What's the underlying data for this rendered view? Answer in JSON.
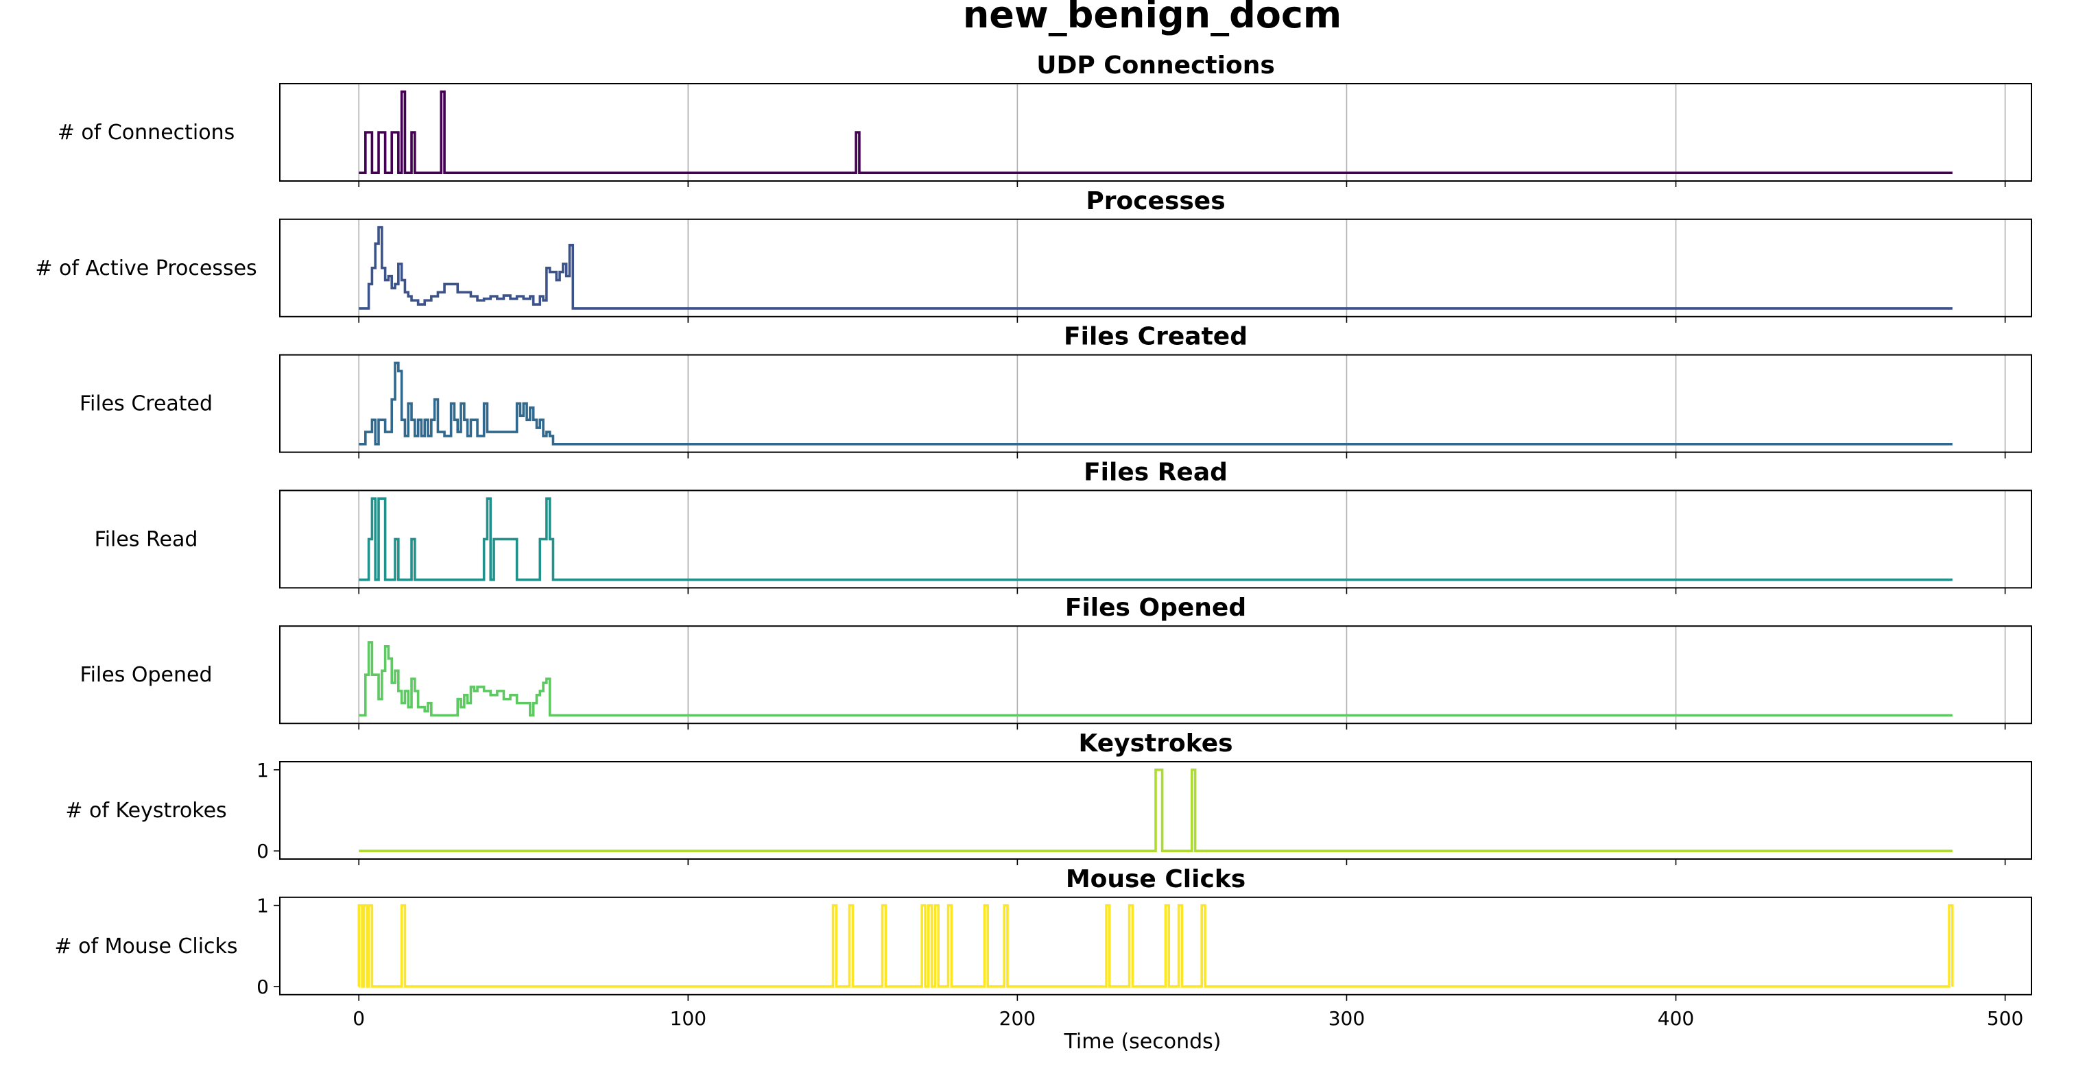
{
  "figure": {
    "suptitle": "new_benign_docm",
    "xlabel": "Time (seconds)"
  },
  "chart_data": [
    {
      "type": "line",
      "title": "UDP Connections",
      "ylabel": "# of Connections",
      "color": "#440154",
      "xlim": [
        -24,
        508
      ],
      "xticks": [
        0,
        100,
        200,
        300,
        400,
        500
      ],
      "ylim": [
        -0.1,
        1.1
      ],
      "yticks": [],
      "grid": true,
      "series": [
        {
          "x": [
            0,
            2,
            4,
            6,
            8,
            10,
            12,
            13,
            14,
            16,
            17,
            25,
            26,
            151,
            152,
            484
          ],
          "y": [
            0,
            0.5,
            0,
            0.5,
            0,
            0.5,
            0,
            1,
            0,
            0.5,
            0,
            1,
            0,
            0.5,
            0,
            0
          ]
        }
      ]
    },
    {
      "type": "line",
      "title": "Processes",
      "ylabel": "# of Active Processes",
      "color": "#3b528b",
      "xlim": [
        -24,
        508
      ],
      "xticks": [
        0,
        100,
        200,
        300,
        400,
        500
      ],
      "ylim": [
        -0.1,
        1.1
      ],
      "yticks": [],
      "grid": true,
      "series": [
        {
          "x": [
            0,
            3,
            4,
            5,
            6,
            7,
            8,
            9,
            10,
            11,
            12,
            13,
            14,
            15,
            16,
            18,
            20,
            22,
            24,
            26,
            28,
            30,
            32,
            34,
            36,
            38,
            40,
            42,
            44,
            46,
            48,
            50,
            52,
            53,
            55,
            56,
            57,
            58,
            60,
            61,
            62,
            63,
            64,
            65,
            66,
            484
          ],
          "y": [
            0,
            0.3,
            0.5,
            0.8,
            1.0,
            0.5,
            0.35,
            0.4,
            0.25,
            0.3,
            0.55,
            0.35,
            0.2,
            0.15,
            0.1,
            0.05,
            0.1,
            0.15,
            0.2,
            0.3,
            0.3,
            0.2,
            0.2,
            0.15,
            0.1,
            0.12,
            0.15,
            0.12,
            0.16,
            0.12,
            0.15,
            0.12,
            0.15,
            0.05,
            0.15,
            0.1,
            0.5,
            0.45,
            0.35,
            0.45,
            0.55,
            0.4,
            0.78,
            0.0,
            0.0,
            0.0
          ]
        }
      ]
    },
    {
      "type": "line",
      "title": "Files Created",
      "ylabel": "Files Created",
      "color": "#31688e",
      "xlim": [
        -24,
        508
      ],
      "xticks": [
        0,
        100,
        200,
        300,
        400,
        500
      ],
      "ylim": [
        -0.1,
        1.1
      ],
      "yticks": [],
      "grid": true,
      "series": [
        {
          "x": [
            0,
            2,
            4,
            5,
            6,
            8,
            10,
            11,
            12,
            13,
            14,
            15,
            16,
            17,
            18,
            19,
            20,
            21,
            22,
            23,
            24,
            26,
            28,
            29,
            30,
            31,
            32,
            33,
            34,
            36,
            38,
            39,
            40,
            41,
            48,
            49,
            50,
            51,
            52,
            53,
            54,
            55,
            56,
            57,
            58,
            59,
            484
          ],
          "y": [
            0,
            0.15,
            0.3,
            0.0,
            0.3,
            0.15,
            0.55,
            1.0,
            0.9,
            0.3,
            0.1,
            0.5,
            0.3,
            0.1,
            0.3,
            0.1,
            0.3,
            0.1,
            0.3,
            0.55,
            0.15,
            0.1,
            0.5,
            0.3,
            0.15,
            0.5,
            0.3,
            0.1,
            0.3,
            0.1,
            0.5,
            0.15,
            0.15,
            0.15,
            0.5,
            0.35,
            0.5,
            0.3,
            0.45,
            0.3,
            0.2,
            0.3,
            0.1,
            0.15,
            0.1,
            0.0,
            0.0
          ]
        }
      ]
    },
    {
      "type": "line",
      "title": "Files Read",
      "ylabel": "Files Read",
      "color": "#21918c",
      "xlim": [
        -24,
        508
      ],
      "xticks": [
        0,
        100,
        200,
        300,
        400,
        500
      ],
      "ylim": [
        -0.1,
        1.1
      ],
      "yticks": [],
      "grid": true,
      "series": [
        {
          "x": [
            0,
            3,
            4,
            5,
            6,
            8,
            10,
            11,
            12,
            16,
            17,
            37,
            38,
            39,
            40,
            41,
            47,
            48,
            54,
            55,
            57,
            58,
            59,
            484
          ],
          "y": [
            0,
            0.5,
            1.0,
            0.0,
            1.0,
            0.0,
            0.0,
            0.5,
            0.0,
            0.5,
            0.0,
            0.0,
            0.5,
            1.0,
            0.0,
            0.5,
            0.5,
            0.0,
            0.0,
            0.5,
            1.0,
            0.5,
            0.0,
            0.0
          ]
        }
      ]
    },
    {
      "type": "line",
      "title": "Files Opened",
      "ylabel": "Files Opened",
      "color": "#5ec962",
      "xlim": [
        -24,
        508
      ],
      "xticks": [
        0,
        100,
        200,
        300,
        400,
        500
      ],
      "ylim": [
        -0.1,
        1.1
      ],
      "yticks": [],
      "grid": true,
      "series": [
        {
          "x": [
            0,
            2,
            3,
            4,
            6,
            7,
            8,
            9,
            10,
            11,
            12,
            13,
            14,
            15,
            16,
            17,
            18,
            20,
            21,
            22,
            24,
            30,
            31,
            32,
            33,
            34,
            35,
            36,
            38,
            40,
            42,
            44,
            46,
            48,
            50,
            52,
            53,
            54,
            55,
            56,
            57,
            58,
            60,
            484
          ],
          "y": [
            0,
            0.5,
            0.9,
            0.5,
            0.2,
            0.55,
            0.85,
            0.7,
            0.4,
            0.55,
            0.3,
            0.15,
            0.3,
            0.1,
            0.45,
            0.3,
            0.1,
            0.05,
            0.15,
            0.0,
            0.0,
            0.2,
            0.1,
            0.25,
            0.15,
            0.35,
            0.3,
            0.35,
            0.3,
            0.25,
            0.3,
            0.2,
            0.25,
            0.15,
            0.15,
            0.0,
            0.15,
            0.25,
            0.3,
            0.4,
            0.45,
            0.0,
            0.0,
            0.0
          ]
        }
      ]
    },
    {
      "type": "line",
      "title": "Keystrokes",
      "ylabel": "# of Keystrokes",
      "color": "#addc30",
      "xlim": [
        -24,
        508
      ],
      "xticks": [
        0,
        100,
        200,
        300,
        400,
        500
      ],
      "ylim": [
        -0.1,
        1.1
      ],
      "yticks": [
        0,
        1
      ],
      "grid": false,
      "series": [
        {
          "x": [
            0,
            242,
            244,
            253,
            254,
            484
          ],
          "y": [
            0,
            1,
            0,
            1,
            0,
            0
          ]
        }
      ]
    },
    {
      "type": "line",
      "title": "Mouse Clicks",
      "ylabel": "# of Mouse Clicks",
      "color": "#fde725",
      "xlim": [
        -24,
        508
      ],
      "xticks": [
        0,
        100,
        200,
        300,
        400,
        500
      ],
      "xticklabels": [
        "0",
        "100",
        "200",
        "300",
        "400",
        "500"
      ],
      "ylim": [
        -0.1,
        1.1
      ],
      "yticks": [
        0,
        1
      ],
      "grid": false,
      "series": [
        {
          "x": [
            0,
            0.01,
            1,
            1.5,
            2.5,
            3,
            4,
            5,
            13,
            14,
            144,
            145,
            149,
            150,
            159,
            160,
            171,
            172,
            173,
            174,
            175,
            176,
            179,
            180,
            190,
            191,
            196,
            197,
            227,
            228,
            234,
            235,
            245,
            246,
            249,
            250,
            256,
            257,
            483,
            484
          ],
          "y": [
            0,
            1,
            0,
            1,
            0,
            1,
            0,
            0,
            1,
            0,
            1,
            0,
            1,
            0,
            1,
            0,
            1,
            0,
            1,
            0,
            1,
            0,
            1,
            0,
            1,
            0,
            1,
            0,
            1,
            0,
            1,
            0,
            1,
            0,
            1,
            0,
            1,
            0,
            1,
            0
          ]
        }
      ]
    }
  ]
}
